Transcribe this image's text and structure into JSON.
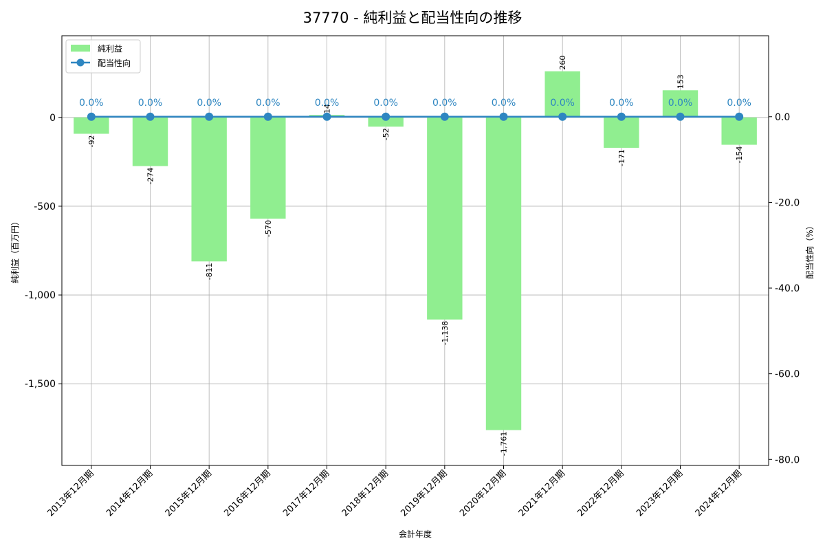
{
  "chart_data": {
    "type": "bar",
    "title": "37770 - 純利益と配当性向の推移",
    "xlabel": "会計年度",
    "ylabel": "純利益（百万円）",
    "y2label": "配当性向（%）",
    "categories": [
      "2013年12月期",
      "2014年12月期",
      "2015年12月期",
      "2016年12月期",
      "2017年12月期",
      "2018年12月期",
      "2019年12月期",
      "2020年12月期",
      "2021年12月期",
      "2022年12月期",
      "2023年12月期",
      "2024年12月期"
    ],
    "series": [
      {
        "name": "純利益",
        "type": "bar",
        "axis": "left",
        "color": "#90ee90",
        "values": [
          -92,
          -274,
          -811,
          -570,
          14,
          -52,
          -1138,
          -1761,
          260,
          -171,
          153,
          -154
        ],
        "labels": [
          "-92",
          "-274",
          "-811",
          "-570",
          "14",
          "-52",
          "-1,138",
          "-1,761",
          "260",
          "-171",
          "153",
          "-154"
        ]
      },
      {
        "name": "配当性向",
        "type": "line",
        "axis": "right",
        "color": "#2e86c1",
        "values": [
          0,
          0,
          0,
          0,
          0,
          0,
          0,
          0,
          0,
          0,
          0,
          0
        ],
        "labels": [
          "0.0%",
          "0.0%",
          "0.0%",
          "0.0%",
          "0.0%",
          "0.0%",
          "0.0%",
          "0.0%",
          "0.0%",
          "0.0%",
          "0.0%",
          "0.0%"
        ]
      }
    ],
    "ylim": [
      -1960,
      460
    ],
    "y_ticks": [
      0,
      -500,
      -1000,
      -1500
    ],
    "y_tick_labels": [
      "0",
      "-500",
      "-1,000",
      "-1,500"
    ],
    "y2lim": [
      -81.4,
      18.9
    ],
    "y2_ticks": [
      0,
      -20,
      -40,
      -60,
      -80
    ],
    "y2_tick_labels": [
      "0.0",
      "-20.0",
      "-40.0",
      "-60.0",
      "-80.0"
    ],
    "grid": true,
    "legend": "top-left"
  }
}
